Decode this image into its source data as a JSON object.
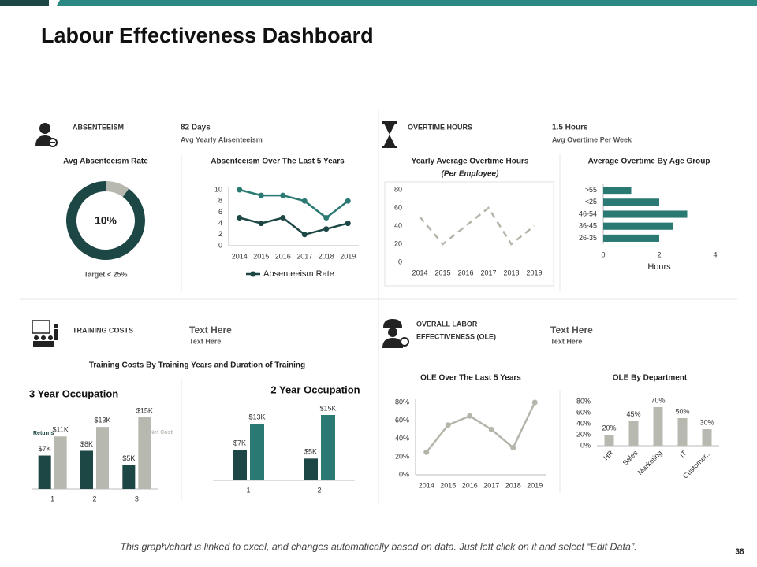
{
  "title": "Labour Effectiveness Dashboard",
  "sections": [
    {
      "heading": "ABSENTEEISM",
      "kpi": "82 Days",
      "kpi_caption": "Avg Yearly Absenteeism"
    },
    {
      "heading": "OVERTIME HOURS",
      "kpi": "1.5 Hours",
      "kpi_caption": "Avg Overtime Per Week"
    },
    {
      "heading": "TRAINING COSTS",
      "kpi": "Text Here",
      "kpi_caption": "Text Here"
    },
    {
      "heading": [
        "OVERALL LABOR",
        "EFFECTIVENESS (OLE)"
      ],
      "kpi": "Text Here",
      "kpi_caption": "Text Here"
    }
  ],
  "training_subtitle": "Training Costs By Training Years and Duration of Training",
  "footer": "This graph/chart is linked to excel, and changes automatically based on data. Just left click on it and select “Edit Data”.",
  "page_number": "38",
  "chart_data": [
    {
      "type": "pie",
      "title": "Avg Absenteeism Rate",
      "values": [
        10,
        90
      ],
      "value_labels": [
        "10%",
        null
      ],
      "colors": [
        "#b7b8b0",
        "#1c4744"
      ],
      "note": "Target < 25%"
    },
    {
      "type": "line",
      "title": "Absenteeism Over The Last 5 Years",
      "categories": [
        "2014",
        "2015",
        "2016",
        "2017",
        "2018",
        "2019"
      ],
      "series": [
        {
          "color": "#2a7a73",
          "values": [
            10,
            9,
            9,
            8,
            5,
            8
          ]
        },
        {
          "name": "Absenteeism Rate",
          "color": "#1c4744",
          "values": [
            5,
            4,
            5,
            2,
            3,
            4
          ]
        }
      ],
      "ylim": [
        0,
        10
      ],
      "yticks": [
        0,
        2,
        4,
        6,
        8,
        10
      ],
      "markers": true
    },
    {
      "type": "line",
      "title": "Yearly Average Overtime Hours",
      "subtitle": "(Per Employee)",
      "categories": [
        "2014",
        "2015",
        "2016",
        "2017",
        "2018",
        "2019"
      ],
      "series": [
        {
          "color": "#b5b5ab",
          "values": [
            50,
            20,
            40,
            60,
            20,
            40
          ],
          "dash": true
        }
      ],
      "ylim": [
        0,
        80
      ],
      "yticks": [
        0,
        20,
        40,
        60,
        80
      ]
    },
    {
      "type": "barh",
      "title": "Average Overtime By Age Group",
      "categories": [
        ">55",
        "<25",
        "46-54",
        "36-45",
        "26-35"
      ],
      "values": [
        1,
        2,
        3,
        2.5,
        2
      ],
      "color": "#2a7a73",
      "xlim": [
        0,
        4
      ],
      "xticks": [
        0,
        2,
        4
      ],
      "xlabel": "Hours"
    },
    {
      "type": "bar",
      "title": "3 Year Occupation",
      "categories": [
        "1",
        "2",
        "3"
      ],
      "series": [
        {
          "name": "Returns",
          "color": "#1c4744",
          "values": [
            7000,
            8000,
            5000
          ],
          "value_labels": [
            "$7K",
            "$8K",
            "$5K"
          ]
        },
        {
          "name": "Net Cost",
          "color": "#b7b8b0",
          "values": [
            11000,
            13000,
            15000
          ],
          "value_labels": [
            "$11K",
            "$13K",
            "$15K"
          ]
        }
      ]
    },
    {
      "type": "bar",
      "title": "2 Year Occupation",
      "categories": [
        "1",
        "2"
      ],
      "series": [
        {
          "color": "#1c4744",
          "values": [
            7000,
            5000
          ],
          "value_labels": [
            "$7K",
            "$5K"
          ]
        },
        {
          "color": "#2a7a73",
          "values": [
            13000,
            15000
          ],
          "value_labels": [
            "$13K",
            "$15K"
          ]
        }
      ]
    },
    {
      "type": "line",
      "title": "OLE Over The Last 5 Years",
      "categories": [
        "2014",
        "2015",
        "2016",
        "2017",
        "2018",
        "2019"
      ],
      "series": [
        {
          "color": "#b5b5ab",
          "values": [
            25,
            55,
            65,
            50,
            30,
            80
          ]
        }
      ],
      "ylim": [
        0,
        80
      ],
      "yticks": [
        {
          "value": 0,
          "label": "0%"
        },
        {
          "value": 20,
          "label": "20%"
        },
        {
          "value": 40,
          "label": "40%"
        },
        {
          "value": 60,
          "label": "60%"
        },
        {
          "value": 80,
          "label": "80%"
        }
      ],
      "markers": true
    },
    {
      "type": "bar",
      "title": "OLE By Department",
      "categories": [
        "HR",
        "Sales",
        "Marketing",
        "IT",
        "Customer..."
      ],
      "values": [
        20,
        45,
        70,
        50,
        30
      ],
      "value_labels": [
        "20%",
        "45%",
        "70%",
        "50%",
        "30%"
      ],
      "color": "#b7b8b0",
      "ylim": [
        0,
        80
      ],
      "yticks": [
        {
          "value": 0,
          "label": "0%"
        },
        {
          "value": 20,
          "label": "20%"
        },
        {
          "value": 40,
          "label": "40%"
        },
        {
          "value": 60,
          "label": "60%"
        },
        {
          "value": 80,
          "label": "80%"
        }
      ]
    }
  ]
}
